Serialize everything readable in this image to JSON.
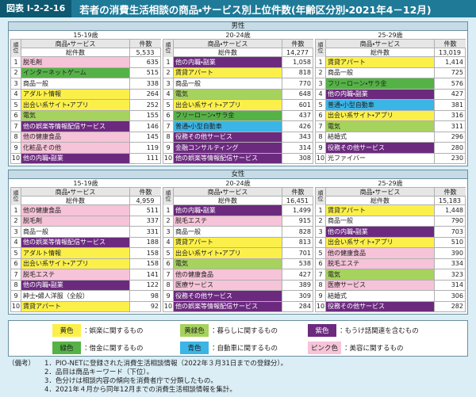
{
  "header": {
    "label": "図表 I-2-2-16",
    "title": "若者の消費生活相談の商品・サービス別上位件数(年齢区分別・2021年4－12月)"
  },
  "panels": [
    {
      "title": "男性",
      "groups": [
        {
          "age": "15-19歳",
          "col_rank": "順位",
          "col_item": "商品・サービス",
          "col_count": "件数",
          "total_label": "総件数",
          "total": "5,533",
          "rows": [
            {
              "rank": "1",
              "item": "脱毛剤",
              "count": "635",
              "color": "pink"
            },
            {
              "rank": "2",
              "item": "インターネットゲーム",
              "count": "515",
              "color": "green"
            },
            {
              "rank": "3",
              "item": "商品一般",
              "count": "338",
              "color": "none"
            },
            {
              "rank": "4",
              "item": "アダルト情報",
              "count": "264",
              "color": "yellow"
            },
            {
              "rank": "5",
              "item": "出会い系サイト・アプリ",
              "count": "252",
              "color": "yellow"
            },
            {
              "rank": "6",
              "item": "電気",
              "count": "155",
              "color": "lime"
            },
            {
              "rank": "7",
              "item": "他の娯楽等情報配信サービス",
              "count": "146",
              "color": "purple"
            },
            {
              "rank": "8",
              "item": "他の健康食品",
              "count": "145",
              "color": "pink"
            },
            {
              "rank": "9",
              "item": "化粧品その他",
              "count": "119",
              "color": "pink"
            },
            {
              "rank": "10",
              "item": "他の内職・副業",
              "count": "111",
              "color": "purple"
            }
          ]
        },
        {
          "age": "20-24歳",
          "col_rank": "順位",
          "col_item": "商品・サービス",
          "col_count": "件数",
          "total_label": "総件数",
          "total": "14,277",
          "rows": [
            {
              "rank": "1",
              "item": "他の内職・副業",
              "count": "1,058",
              "color": "purple"
            },
            {
              "rank": "2",
              "item": "賃貸アパート",
              "count": "818",
              "color": "yellow"
            },
            {
              "rank": "3",
              "item": "商品一般",
              "count": "770",
              "color": "none"
            },
            {
              "rank": "4",
              "item": "電気",
              "count": "648",
              "color": "lime"
            },
            {
              "rank": "5",
              "item": "出会い系サイト・アプリ",
              "count": "601",
              "color": "yellow"
            },
            {
              "rank": "6",
              "item": "フリーローン・サラ金",
              "count": "437",
              "color": "green"
            },
            {
              "rank": "7",
              "item": "普通・小型自動車",
              "count": "426",
              "color": "blue"
            },
            {
              "rank": "8",
              "item": "役務その他サービス",
              "count": "343",
              "color": "purple"
            },
            {
              "rank": "9",
              "item": "金融コンサルティング",
              "count": "314",
              "color": "purple"
            },
            {
              "rank": "10",
              "item": "他の娯楽等情報配信サービス",
              "count": "308",
              "color": "purple"
            }
          ]
        },
        {
          "age": "25-29歳",
          "col_rank": "順位",
          "col_item": "商品・サービス",
          "col_count": "件数",
          "total_label": "総件数",
          "total": "13,019",
          "rows": [
            {
              "rank": "1",
              "item": "賃貸アパート",
              "count": "1,414",
              "color": "yellow"
            },
            {
              "rank": "2",
              "item": "商品一般",
              "count": "725",
              "color": "none"
            },
            {
              "rank": "3",
              "item": "フリーローン・サラ金",
              "count": "576",
              "color": "green"
            },
            {
              "rank": "4",
              "item": "他の内職・副業",
              "count": "427",
              "color": "purple"
            },
            {
              "rank": "5",
              "item": "普通・小型自動車",
              "count": "381",
              "color": "blue"
            },
            {
              "rank": "6",
              "item": "出会い系サイト・アプリ",
              "count": "316",
              "color": "yellow"
            },
            {
              "rank": "7",
              "item": "電気",
              "count": "311",
              "color": "lime"
            },
            {
              "rank": "8",
              "item": "結婚式",
              "count": "296",
              "color": "none"
            },
            {
              "rank": "9",
              "item": "役務その他サービス",
              "count": "280",
              "color": "purple"
            },
            {
              "rank": "10",
              "item": "光ファイバー",
              "count": "230",
              "color": "none"
            }
          ]
        }
      ]
    },
    {
      "title": "女性",
      "groups": [
        {
          "age": "15-19歳",
          "col_rank": "順位",
          "col_item": "商品・サービス",
          "col_count": "件数",
          "total_label": "総件数",
          "total": "4,959",
          "rows": [
            {
              "rank": "1",
              "item": "他の健康食品",
              "count": "511",
              "color": "pink"
            },
            {
              "rank": "2",
              "item": "脱毛剤",
              "count": "337",
              "color": "pink"
            },
            {
              "rank": "3",
              "item": "商品一般",
              "count": "331",
              "color": "none"
            },
            {
              "rank": "4",
              "item": "他の娯楽等情報配信サービス",
              "count": "188",
              "color": "purple"
            },
            {
              "rank": "5",
              "item": "アダルト情報",
              "count": "158",
              "color": "yellow"
            },
            {
              "rank": "6",
              "item": "出会い系サイト・アプリ",
              "count": "158",
              "color": "yellow"
            },
            {
              "rank": "7",
              "item": "脱毛エステ",
              "count": "141",
              "color": "pink"
            },
            {
              "rank": "8",
              "item": "他の内職・副業",
              "count": "122",
              "color": "purple"
            },
            {
              "rank": "9",
              "item": "紳士・婦人洋服（全般）",
              "count": "98",
              "color": "none"
            },
            {
              "rank": "10",
              "item": "賃貸アパート",
              "count": "92",
              "color": "yellow"
            }
          ]
        },
        {
          "age": "20-24歳",
          "col_rank": "順位",
          "col_item": "商品・サービス",
          "col_count": "件数",
          "total_label": "総件数",
          "total": "16,451",
          "rows": [
            {
              "rank": "1",
              "item": "他の内職・副業",
              "count": "1,499",
              "color": "purple"
            },
            {
              "rank": "2",
              "item": "脱毛エステ",
              "count": "915",
              "color": "pink"
            },
            {
              "rank": "3",
              "item": "商品一般",
              "count": "828",
              "color": "none"
            },
            {
              "rank": "4",
              "item": "賃貸アパート",
              "count": "813",
              "color": "yellow"
            },
            {
              "rank": "5",
              "item": "出会い系サイト・アプリ",
              "count": "701",
              "color": "yellow"
            },
            {
              "rank": "6",
              "item": "電気",
              "count": "538",
              "color": "lime"
            },
            {
              "rank": "7",
              "item": "他の健康食品",
              "count": "427",
              "color": "pink"
            },
            {
              "rank": "8",
              "item": "医療サービス",
              "count": "389",
              "color": "pink"
            },
            {
              "rank": "9",
              "item": "役務その他サービス",
              "count": "309",
              "color": "purple"
            },
            {
              "rank": "10",
              "item": "他の娯楽等情報配信サービス",
              "count": "284",
              "color": "purple"
            }
          ]
        },
        {
          "age": "25-29歳",
          "col_rank": "順位",
          "col_item": "商品・サービス",
          "col_count": "件数",
          "total_label": "総件数",
          "total": "15,183",
          "rows": [
            {
              "rank": "1",
              "item": "賃貸アパート",
              "count": "1,448",
              "color": "yellow"
            },
            {
              "rank": "2",
              "item": "商品一般",
              "count": "790",
              "color": "none"
            },
            {
              "rank": "3",
              "item": "他の内職・副業",
              "count": "703",
              "color": "purple"
            },
            {
              "rank": "4",
              "item": "出会い系サイト・アプリ",
              "count": "510",
              "color": "yellow"
            },
            {
              "rank": "5",
              "item": "他の健康食品",
              "count": "390",
              "color": "pink"
            },
            {
              "rank": "6",
              "item": "脱毛エステ",
              "count": "334",
              "color": "pink"
            },
            {
              "rank": "7",
              "item": "電気",
              "count": "323",
              "color": "lime"
            },
            {
              "rank": "8",
              "item": "医療サービス",
              "count": "314",
              "color": "pink"
            },
            {
              "rank": "9",
              "item": "結婚式",
              "count": "306",
              "color": "none"
            },
            {
              "rank": "10",
              "item": "役務その他サービス",
              "count": "282",
              "color": "purple"
            }
          ]
        }
      ]
    }
  ],
  "legend": [
    {
      "swatch": "黄色",
      "text": "：娯楽に関するもの",
      "color": "yellow"
    },
    {
      "swatch": "黄緑色",
      "text": "：暮らしに関するもの",
      "color": "lime"
    },
    {
      "swatch": "紫色",
      "text": "：もうけ話関連を含むもの",
      "color": "purple"
    },
    {
      "swatch": "緑色",
      "text": "：借金に関するもの",
      "color": "green"
    },
    {
      "swatch": "青色",
      "text": "：自動車に関するもの",
      "color": "blue"
    },
    {
      "swatch": "ピンク色",
      "text": "：美容に関するもの",
      "color": "pink"
    }
  ],
  "notes": {
    "label": "（備考）",
    "items": [
      "1．PIO-NETに登録された消費生活相談情報（2022年３月31日までの登録分）。",
      "2．品目は商品キーワード（下位）。",
      "3．色分けは相談内容の傾向を消費者庁で分類したもの。",
      "4．2021年４月から同年12月までの消費生活相談情報を集計。"
    ]
  }
}
